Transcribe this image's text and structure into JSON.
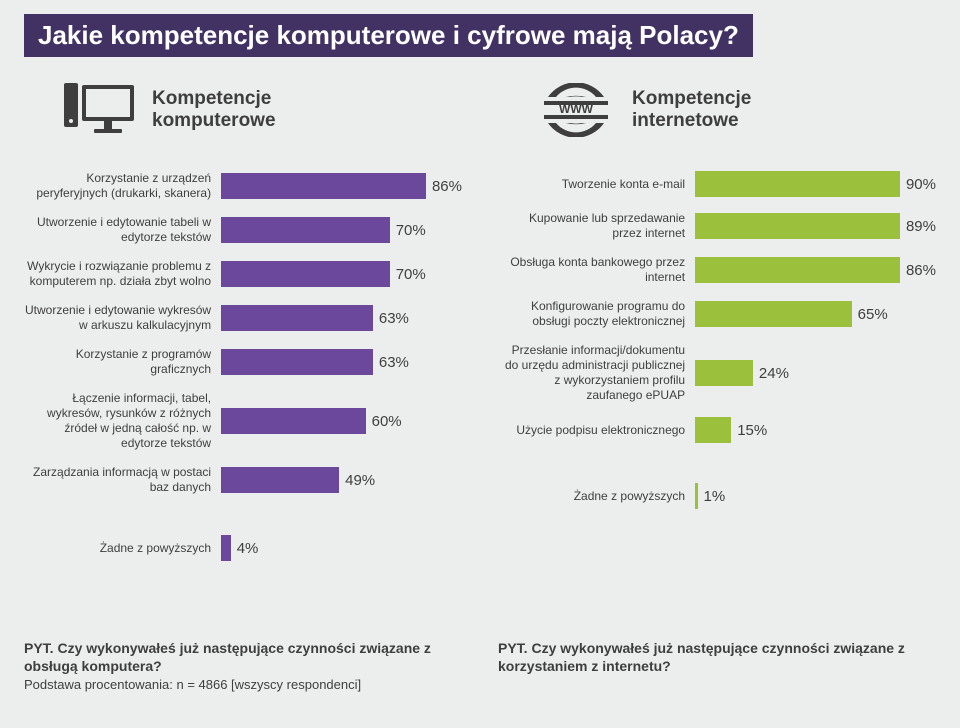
{
  "title": "Jakie kompetencje komputerowe i cyfrowe mają Polacy?",
  "left": {
    "heading": "Kompetencje\nkomputerowe",
    "bar_color": "#6b489b",
    "none_bar_color": "#6b489b",
    "items": [
      {
        "label": "Korzystanie z urządzeń peryferyjnych (drukarki, skanera)",
        "value": 86
      },
      {
        "label": "Utworzenie i edytowanie tabeli w edytorze tekstów",
        "value": 70
      },
      {
        "label": "Wykrycie i rozwiązanie problemu z komputerem np. działa zbyt wolno",
        "value": 70
      },
      {
        "label": "Utworzenie i edytowanie wykresów w arkuszu kalkulacyjnym",
        "value": 63
      },
      {
        "label": "Korzystanie z programów graficznych",
        "value": 63
      },
      {
        "label": "Łączenie informacji, tabel, wykresów, rysunków z różnych źródeł w jedną całość np. w edytorze tekstów",
        "value": 60
      },
      {
        "label": "Zarządzania informacją w postaci baz danych",
        "value": 49
      }
    ],
    "none": {
      "label": "Żadne z powyższych",
      "value": 4
    },
    "question": "PYT. Czy wykonywałeś już następujące czynności związane z obsługą komputera?",
    "sub": "Podstawa procentowania: n = 4866 [wszyscy respondenci]"
  },
  "right": {
    "heading": "Kompetencje\ninternetowe",
    "bar_color": "#9ac03c",
    "none_bar_color": "#9ac03c",
    "items": [
      {
        "label": "Tworzenie konta e-mail",
        "value": 90
      },
      {
        "label": "Kupowanie lub sprzedawanie przez internet",
        "value": 89
      },
      {
        "label": "Obsługa konta bankowego przez internet",
        "value": 86
      },
      {
        "label": "Konfigurowanie programu do obsługi poczty elektronicznej",
        "value": 65
      },
      {
        "label": "Przesłanie informacji/dokumentu do urzędu administracji publicznej z wykorzystaniem profilu zaufanego ePUAP",
        "value": 24
      },
      {
        "label": "Użycie podpisu elektronicznego",
        "value": 15
      }
    ],
    "none": {
      "label": "Żadne z powyższych",
      "value": 1
    },
    "question": "PYT. Czy wykonywałeś już następujące czynności związane z korzystaniem z internetu?"
  },
  "colors": {
    "background": "#eceeee",
    "title_bg": "#423163",
    "title_fg": "#ffffff",
    "text": "#3e3e3e"
  }
}
